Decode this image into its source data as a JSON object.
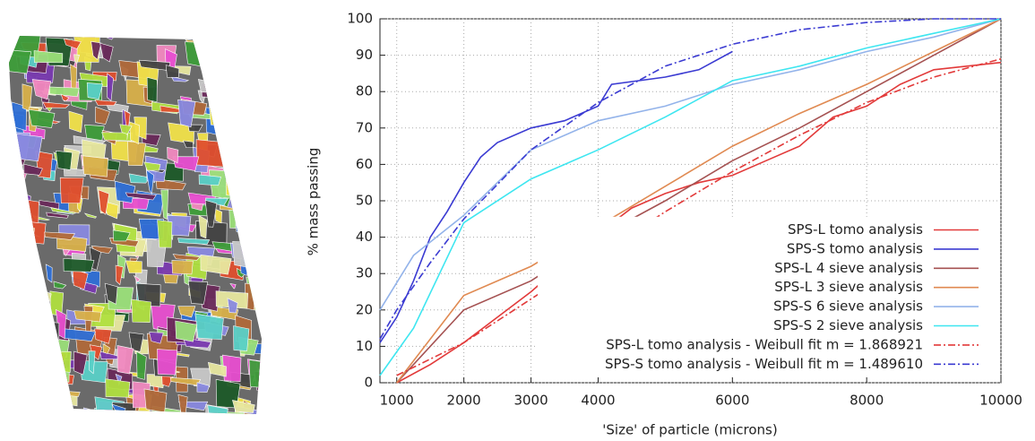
{
  "chart_data": {
    "type": "line",
    "x_label": "'Size' of particle (microns)",
    "y_label": "% mass passing",
    "xlim": [
      750,
      10000
    ],
    "ylim": [
      0,
      100
    ],
    "xticks": [
      1000,
      2000,
      3000,
      4000,
      6000,
      8000,
      10000
    ],
    "yticks": [
      0,
      10,
      20,
      30,
      40,
      50,
      60,
      70,
      80,
      90,
      100
    ],
    "grid": true,
    "legend": "lower right",
    "series": [
      {
        "name": "SPS-L tomo analysis",
        "color": "#e23a3a",
        "line_style": "solid",
        "x": [
          1000,
          1500,
          2000,
          2500,
          3000,
          3500,
          4000,
          4500,
          5000,
          5500,
          6000,
          6500,
          7000,
          7500,
          8000,
          8500,
          9000,
          10000
        ],
        "values": [
          0,
          5,
          11,
          18,
          25,
          33,
          41,
          48,
          52,
          55,
          57,
          61,
          65,
          73,
          76,
          82,
          86,
          88
        ]
      },
      {
        "name": "SPS-S tomo analysis",
        "color": "#3b3bd2",
        "line_style": "solid",
        "x": [
          750,
          1000,
          1250,
          1500,
          1750,
          2000,
          2250,
          2500,
          3000,
          3500,
          4000,
          4200,
          5000,
          5500,
          6000
        ],
        "values": [
          11,
          18,
          28,
          40,
          47,
          55,
          62,
          66,
          70,
          72,
          76,
          82,
          84,
          86,
          91
        ]
      },
      {
        "name": "SPS-L 4 sieve analysis",
        "color": "#a55252",
        "line_style": "solid",
        "x": [
          1000,
          2000,
          3000,
          4000,
          5000,
          6000,
          7000,
          8000,
          9000,
          10000
        ],
        "values": [
          0,
          20,
          28,
          40,
          50,
          61,
          70,
          80,
          90,
          100
        ]
      },
      {
        "name": "SPS-L 3 sieve analysis",
        "color": "#e08a52",
        "line_style": "solid",
        "x": [
          1000,
          2000,
          3000,
          4000,
          5000,
          6000,
          7000,
          8000,
          9000,
          10000
        ],
        "values": [
          0,
          24,
          32,
          43,
          54,
          65,
          74,
          82,
          91,
          100
        ]
      },
      {
        "name": "SPS-S 6 sieve analysis",
        "color": "#93b3ea",
        "line_style": "solid",
        "x": [
          750,
          1250,
          2000,
          3000,
          4000,
          5000,
          6000,
          7000,
          8000,
          9000,
          10000
        ],
        "values": [
          20,
          35,
          46,
          64,
          72,
          76,
          82,
          86,
          91,
          95,
          100
        ]
      },
      {
        "name": "SPS-S 2 sieve analysis",
        "color": "#3ee6f0",
        "line_style": "solid",
        "x": [
          750,
          1250,
          2000,
          3000,
          4000,
          5000,
          6000,
          7000,
          8000,
          9000,
          10000
        ],
        "values": [
          2,
          15,
          44,
          56,
          64,
          73,
          83,
          87,
          92,
          96,
          100
        ]
      },
      {
        "name": "SPS-L tomo analysis - Weibull fit m = 1.868921",
        "color": "#e23a3a",
        "line_style": "dash-dot",
        "x": [
          1000,
          2000,
          3000,
          4000,
          5000,
          6000,
          7000,
          8000,
          9000,
          10000
        ],
        "values": [
          2,
          11,
          23,
          35,
          47,
          58,
          68,
          77,
          84,
          89
        ]
      },
      {
        "name": "SPS-S tomo analysis - Weibull fit m = 1.489610",
        "color": "#3b3bd2",
        "line_style": "dash-dot",
        "x": [
          750,
          1000,
          1500,
          2000,
          3000,
          4000,
          5000,
          6000,
          7000,
          8000,
          9000,
          10000
        ],
        "values": [
          12,
          20,
          33,
          45,
          64,
          77,
          87,
          93,
          97,
          99,
          100,
          100
        ]
      }
    ]
  }
}
